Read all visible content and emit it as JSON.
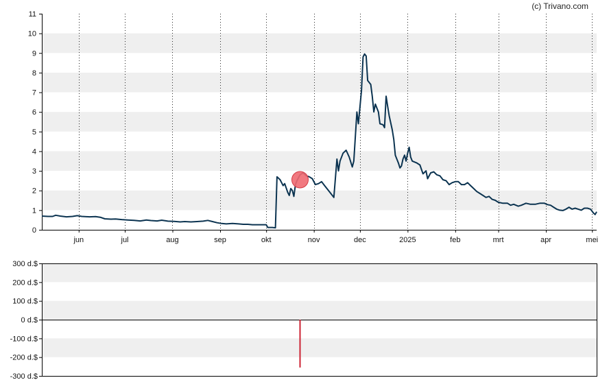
{
  "credit": "(c) Trivano.com",
  "colors": {
    "line": "#0b3350",
    "band": "#efefef",
    "marker_fill": "#f06a72",
    "marker_stroke": "#d43a44",
    "volume": "#cc2233",
    "axis": "#000000"
  },
  "chart_data": [
    {
      "type": "line",
      "name": "price",
      "ylim": [
        0,
        11
      ],
      "y_ticks": [
        "0",
        "1",
        "2",
        "3",
        "4",
        "5",
        "6",
        "7",
        "8",
        "9",
        "10",
        "11"
      ],
      "x_ticks": [
        {
          "label": "jun",
          "day": 24
        },
        {
          "label": "jul",
          "day": 54
        },
        {
          "label": "aug",
          "day": 85
        },
        {
          "label": "sep",
          "day": 116
        },
        {
          "label": "okt",
          "day": 146
        },
        {
          "label": "nov",
          "day": 177
        },
        {
          "label": "dec",
          "day": 207
        },
        {
          "label": "2025",
          "day": 238
        },
        {
          "label": "feb",
          "day": 269
        },
        {
          "label": "mrt",
          "day": 297
        },
        {
          "label": "apr",
          "day": 328
        },
        {
          "label": "mei",
          "day": 358
        }
      ],
      "xlim": [
        0,
        361
      ],
      "grid": "vertical dotted at month ticks, alternating horizontal bands",
      "points": [
        [
          0,
          0.7
        ],
        [
          4,
          0.68
        ],
        [
          7,
          0.68
        ],
        [
          9,
          0.74
        ],
        [
          12,
          0.7
        ],
        [
          16,
          0.66
        ],
        [
          20,
          0.68
        ],
        [
          23,
          0.72
        ],
        [
          26,
          0.68
        ],
        [
          31,
          0.66
        ],
        [
          35,
          0.67
        ],
        [
          38,
          0.64
        ],
        [
          41,
          0.56
        ],
        [
          45,
          0.54
        ],
        [
          48,
          0.55
        ],
        [
          52,
          0.52
        ],
        [
          56,
          0.5
        ],
        [
          60,
          0.48
        ],
        [
          64,
          0.45
        ],
        [
          68,
          0.5
        ],
        [
          71,
          0.47
        ],
        [
          75,
          0.45
        ],
        [
          78,
          0.49
        ],
        [
          82,
          0.44
        ],
        [
          86,
          0.43
        ],
        [
          90,
          0.4
        ],
        [
          93,
          0.42
        ],
        [
          97,
          0.4
        ],
        [
          101,
          0.42
        ],
        [
          105,
          0.44
        ],
        [
          108,
          0.48
        ],
        [
          111,
          0.42
        ],
        [
          114,
          0.36
        ],
        [
          117,
          0.32
        ],
        [
          120,
          0.3
        ],
        [
          124,
          0.32
        ],
        [
          128,
          0.3
        ],
        [
          131,
          0.28
        ],
        [
          134,
          0.28
        ],
        [
          137,
          0.26
        ],
        [
          140,
          0.26
        ],
        [
          146,
          0.26
        ],
        [
          147,
          0.12
        ],
        [
          150,
          0.12
        ],
        [
          152,
          0.1
        ],
        [
          153,
          2.7
        ],
        [
          155,
          2.55
        ],
        [
          157,
          2.25
        ],
        [
          158,
          2.35
        ],
        [
          160,
          1.9
        ],
        [
          161,
          1.75
        ],
        [
          162,
          2.1
        ],
        [
          163,
          2.0
        ],
        [
          164,
          1.7
        ],
        [
          165,
          2.3
        ],
        [
          166,
          2.5
        ],
        [
          168,
          2.8
        ],
        [
          170,
          2.9
        ],
        [
          172,
          2.75
        ],
        [
          174,
          2.7
        ],
        [
          176,
          2.6
        ],
        [
          178,
          2.3
        ],
        [
          180,
          2.35
        ],
        [
          182,
          2.45
        ],
        [
          184,
          2.25
        ],
        [
          186,
          2.05
        ],
        [
          188,
          1.85
        ],
        [
          190,
          1.65
        ],
        [
          192,
          3.6
        ],
        [
          193,
          3.0
        ],
        [
          194,
          3.5
        ],
        [
          196,
          3.9
        ],
        [
          198,
          4.05
        ],
        [
          200,
          3.7
        ],
        [
          202,
          3.2
        ],
        [
          203,
          3.5
        ],
        [
          205,
          6.0
        ],
        [
          206,
          5.4
        ],
        [
          208,
          7.1
        ],
        [
          209,
          8.8
        ],
        [
          210,
          8.95
        ],
        [
          211,
          8.85
        ],
        [
          212,
          7.6
        ],
        [
          214,
          7.4
        ],
        [
          215,
          6.8
        ],
        [
          216,
          6.0
        ],
        [
          217,
          6.4
        ],
        [
          219,
          6.0
        ],
        [
          220,
          5.4
        ],
        [
          222,
          5.35
        ],
        [
          223,
          5.2
        ],
        [
          224,
          6.8
        ],
        [
          225,
          6.3
        ],
        [
          226,
          5.8
        ],
        [
          228,
          5.1
        ],
        [
          229,
          4.6
        ],
        [
          230,
          3.8
        ],
        [
          232,
          3.4
        ],
        [
          233,
          3.15
        ],
        [
          234,
          3.25
        ],
        [
          235,
          3.6
        ],
        [
          236,
          3.8
        ],
        [
          237,
          3.5
        ],
        [
          238,
          3.9
        ],
        [
          239,
          4.2
        ],
        [
          240,
          3.7
        ],
        [
          241,
          3.5
        ],
        [
          244,
          3.4
        ],
        [
          246,
          3.3
        ],
        [
          248,
          2.85
        ],
        [
          250,
          3.0
        ],
        [
          251,
          2.6
        ],
        [
          253,
          2.9
        ],
        [
          255,
          2.95
        ],
        [
          257,
          2.8
        ],
        [
          259,
          2.75
        ],
        [
          261,
          2.55
        ],
        [
          263,
          2.5
        ],
        [
          265,
          2.3
        ],
        [
          267,
          2.4
        ],
        [
          269,
          2.45
        ],
        [
          271,
          2.45
        ],
        [
          273,
          2.3
        ],
        [
          275,
          2.3
        ],
        [
          277,
          2.4
        ],
        [
          279,
          2.25
        ],
        [
          281,
          2.1
        ],
        [
          283,
          1.95
        ],
        [
          285,
          1.85
        ],
        [
          287,
          1.75
        ],
        [
          289,
          1.65
        ],
        [
          291,
          1.7
        ],
        [
          293,
          1.55
        ],
        [
          295,
          1.5
        ],
        [
          297,
          1.4
        ],
        [
          300,
          1.35
        ],
        [
          303,
          1.35
        ],
        [
          305,
          1.25
        ],
        [
          307,
          1.3
        ],
        [
          310,
          1.2
        ],
        [
          312,
          1.25
        ],
        [
          315,
          1.35
        ],
        [
          318,
          1.3
        ],
        [
          321,
          1.3
        ],
        [
          324,
          1.35
        ],
        [
          327,
          1.35
        ],
        [
          329,
          1.28
        ],
        [
          331,
          1.25
        ],
        [
          333,
          1.15
        ],
        [
          335,
          1.05
        ],
        [
          337,
          1.0
        ],
        [
          339,
          0.98
        ],
        [
          341,
          1.05
        ],
        [
          343,
          1.15
        ],
        [
          345,
          1.05
        ],
        [
          347,
          1.1
        ],
        [
          349,
          1.05
        ],
        [
          351,
          1.0
        ],
        [
          353,
          1.1
        ],
        [
          355,
          1.1
        ],
        [
          357,
          1.05
        ],
        [
          359,
          0.85
        ],
        [
          360,
          0.78
        ],
        [
          361,
          0.92
        ]
      ],
      "marker": {
        "day": 168,
        "value": 2.55
      }
    },
    {
      "type": "bar",
      "name": "volume",
      "ylim": [
        -300,
        300
      ],
      "y_ticks": [
        "300 d.$",
        "200 d.$",
        "100 d.$",
        "0 d.$",
        "-100 d.$",
        "-200 d.$",
        "-300 d.$"
      ],
      "bars": [
        {
          "day": 168,
          "value": -255
        }
      ]
    }
  ]
}
